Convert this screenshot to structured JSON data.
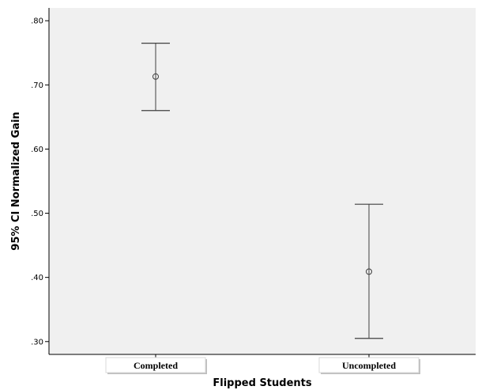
{
  "chart_data": {
    "type": "errorbar",
    "title": "",
    "xlabel": "Flipped Students",
    "ylabel": "95% CI Normalized Gain",
    "ylim": [
      0.28,
      0.82
    ],
    "yticks": [
      {
        "value": 0.3,
        "label": ".30"
      },
      {
        "value": 0.4,
        "label": ".40"
      },
      {
        "value": 0.5,
        "label": ".50"
      },
      {
        "value": 0.6,
        "label": ".60"
      },
      {
        "value": 0.7,
        "label": ".70"
      },
      {
        "value": 0.8,
        "label": ".80"
      }
    ],
    "categories": [
      "Completed",
      "Uncompleted"
    ],
    "points": [
      {
        "category": "Completed",
        "mean": 0.713,
        "lower": 0.66,
        "upper": 0.765
      },
      {
        "category": "Uncompleted",
        "mean": 0.409,
        "lower": 0.305,
        "upper": 0.514
      }
    ],
    "grid": false,
    "colors": {
      "plot_background": "#f0f0f0",
      "marks": "#404040"
    }
  }
}
